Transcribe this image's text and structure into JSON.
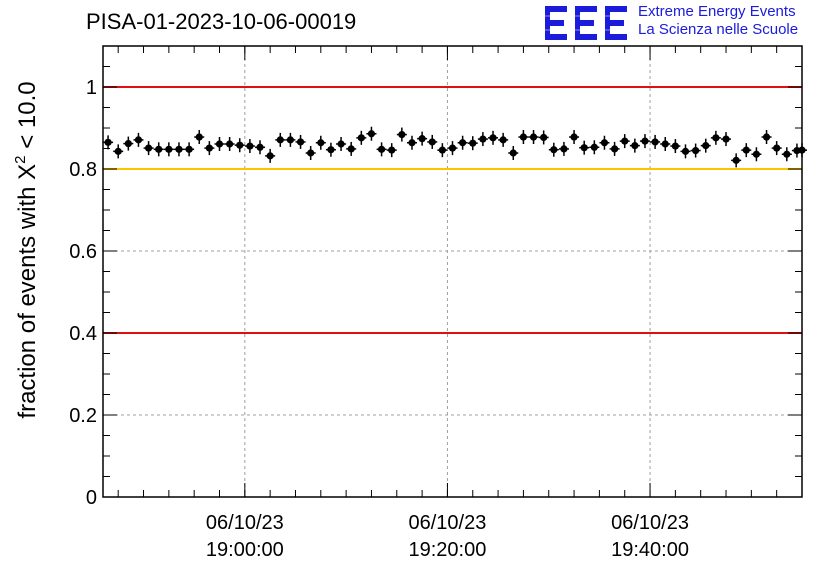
{
  "title": "PISA-01-2023-10-06-00019",
  "logo": {
    "letters": "EEE",
    "line1": "Extreme Energy Events",
    "line2": "La Scienza nelle Scuole",
    "color": "#1b1bdc"
  },
  "colors": {
    "threshold_upper": "#e01010",
    "threshold_lower": "#e01010",
    "reference": "#ffc400",
    "markers": "#000000",
    "grid": "#a0a0a0"
  },
  "chart_data": {
    "type": "scatter",
    "title": "PISA-01-2023-10-06-00019",
    "ylabel_main": "fraction of events with X",
    "ylabel_sup": "2",
    "ylabel_tail": " < 10.0",
    "xlabel": "",
    "x_unit": "minutes from 06/10/23 18:46:00",
    "xlim": [
      0,
      69
    ],
    "ylim": [
      0,
      1.1
    ],
    "y_ticks": [
      {
        "value": 0,
        "label": "0"
      },
      {
        "value": 0.2,
        "label": "0.2"
      },
      {
        "value": 0.4,
        "label": "0.4"
      },
      {
        "value": 0.6,
        "label": "0.6"
      },
      {
        "value": 0.8,
        "label": "0.8"
      },
      {
        "value": 1.0,
        "label": "1"
      }
    ],
    "x_ticks": [
      {
        "value": 14,
        "date": "06/10/23",
        "time": "19:00:00"
      },
      {
        "value": 34,
        "date": "06/10/23",
        "time": "19:20:00"
      },
      {
        "value": 54,
        "date": "06/10/23",
        "time": "19:40:00"
      }
    ],
    "hlines": [
      {
        "y": 1.0,
        "color": "#e01010"
      },
      {
        "y": 0.8,
        "color": "#ffc400"
      },
      {
        "y": 0.4,
        "color": "#e01010"
      }
    ],
    "grid": true,
    "points": [
      [
        0.5,
        0.865
      ],
      [
        1.5,
        0.843
      ],
      [
        2.5,
        0.862
      ],
      [
        3.5,
        0.871
      ],
      [
        4.5,
        0.851
      ],
      [
        5.5,
        0.848
      ],
      [
        6.5,
        0.848
      ],
      [
        7.5,
        0.848
      ],
      [
        8.5,
        0.848
      ],
      [
        9.5,
        0.878
      ],
      [
        10.5,
        0.851
      ],
      [
        11.5,
        0.861
      ],
      [
        12.5,
        0.861
      ],
      [
        13.5,
        0.858
      ],
      [
        14.5,
        0.856
      ],
      [
        15.5,
        0.853
      ],
      [
        16.5,
        0.832
      ],
      [
        17.5,
        0.871
      ],
      [
        18.5,
        0.871
      ],
      [
        19.5,
        0.866
      ],
      [
        20.5,
        0.839
      ],
      [
        21.5,
        0.864
      ],
      [
        22.5,
        0.847
      ],
      [
        23.5,
        0.861
      ],
      [
        24.5,
        0.849
      ],
      [
        25.5,
        0.876
      ],
      [
        26.5,
        0.886
      ],
      [
        27.5,
        0.848
      ],
      [
        28.5,
        0.846
      ],
      [
        29.5,
        0.884
      ],
      [
        30.5,
        0.864
      ],
      [
        31.5,
        0.874
      ],
      [
        32.5,
        0.866
      ],
      [
        33.5,
        0.846
      ],
      [
        34.5,
        0.851
      ],
      [
        35.5,
        0.864
      ],
      [
        36.5,
        0.863
      ],
      [
        37.5,
        0.873
      ],
      [
        38.5,
        0.876
      ],
      [
        39.5,
        0.871
      ],
      [
        40.5,
        0.839
      ],
      [
        41.5,
        0.878
      ],
      [
        42.5,
        0.878
      ],
      [
        43.5,
        0.877
      ],
      [
        44.5,
        0.847
      ],
      [
        45.5,
        0.849
      ],
      [
        46.5,
        0.878
      ],
      [
        47.5,
        0.852
      ],
      [
        48.5,
        0.853
      ],
      [
        49.5,
        0.864
      ],
      [
        50.5,
        0.849
      ],
      [
        51.5,
        0.868
      ],
      [
        52.5,
        0.857
      ],
      [
        53.5,
        0.868
      ],
      [
        54.5,
        0.866
      ],
      [
        55.5,
        0.861
      ],
      [
        56.5,
        0.856
      ],
      [
        57.5,
        0.843
      ],
      [
        58.5,
        0.845
      ],
      [
        59.5,
        0.857
      ],
      [
        60.5,
        0.876
      ],
      [
        61.5,
        0.873
      ],
      [
        62.5,
        0.821
      ],
      [
        63.5,
        0.846
      ],
      [
        64.5,
        0.836
      ],
      [
        65.5,
        0.878
      ],
      [
        66.5,
        0.851
      ],
      [
        67.5,
        0.836
      ],
      [
        68.5,
        0.845
      ],
      [
        69.0,
        0.846
      ]
    ]
  }
}
